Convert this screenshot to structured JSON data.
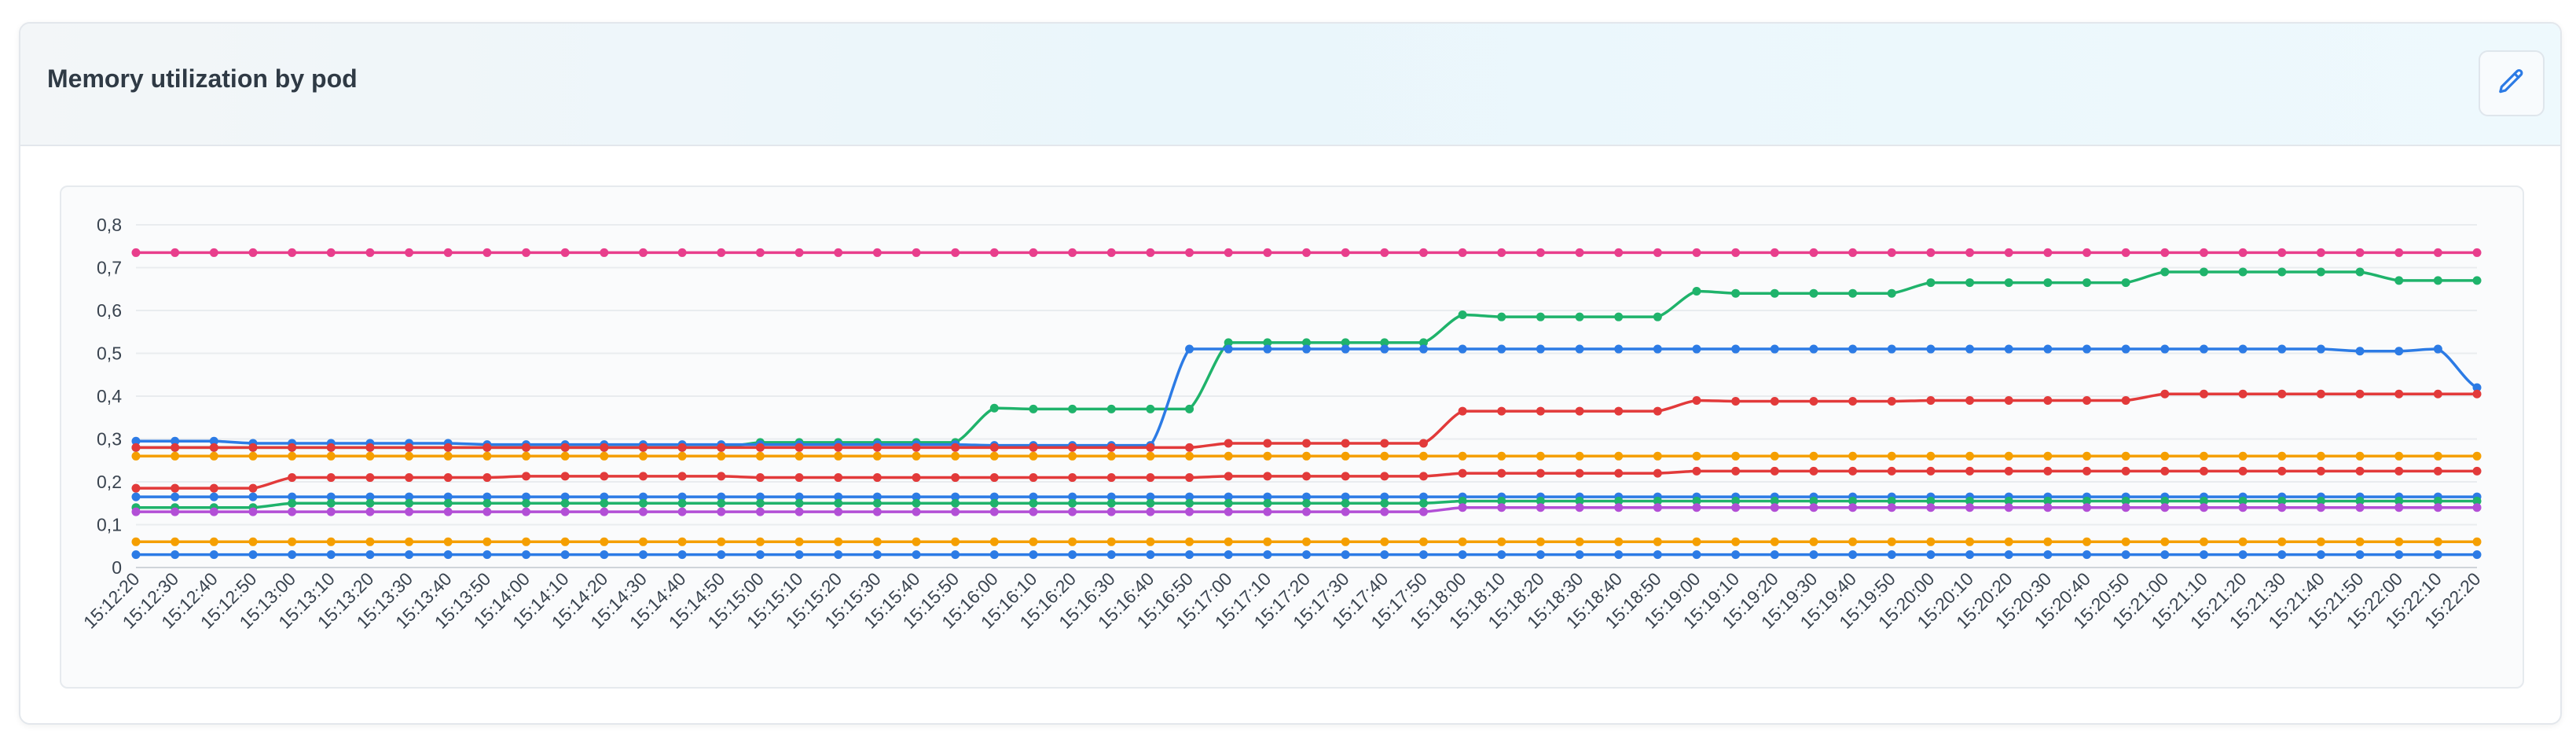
{
  "card": {
    "title": "Memory utilization by pod"
  },
  "icons": {
    "edit": "pencil-icon"
  },
  "chart_data": {
    "type": "line",
    "ylim": [
      0,
      0.8
    ],
    "y_ticks": [
      "0",
      "0,1",
      "0,2",
      "0,3",
      "0,4",
      "0,5",
      "0,6",
      "0,7",
      "0,8"
    ],
    "grid": true,
    "legend": "none",
    "x": [
      "15:12:20",
      "15:12:30",
      "15:12:40",
      "15:12:50",
      "15:13:00",
      "15:13:10",
      "15:13:20",
      "15:13:30",
      "15:13:40",
      "15:13:50",
      "15:14:00",
      "15:14:10",
      "15:14:20",
      "15:14:30",
      "15:14:40",
      "15:14:50",
      "15:15:00",
      "15:15:10",
      "15:15:20",
      "15:15:30",
      "15:15:40",
      "15:15:50",
      "15:16:00",
      "15:16:10",
      "15:16:20",
      "15:16:30",
      "15:16:40",
      "15:16:50",
      "15:17:00",
      "15:17:10",
      "15:17:20",
      "15:17:30",
      "15:17:40",
      "15:17:50",
      "15:18:00",
      "15:18:10",
      "15:18:20",
      "15:18:30",
      "15:18:40",
      "15:18:50",
      "15:19:00",
      "15:19:10",
      "15:19:20",
      "15:19:30",
      "15:19:40",
      "15:19:50",
      "15:20:00",
      "15:20:10",
      "15:20:20",
      "15:20:30",
      "15:20:40",
      "15:20:50",
      "15:21:00",
      "15:21:10",
      "15:21:20",
      "15:21:30",
      "15:21:40",
      "15:21:50",
      "15:22:00",
      "15:22:10",
      "15:22:20"
    ],
    "series": [
      {
        "color": "#e83e8c",
        "values": [
          0.735,
          0.735,
          0.735,
          0.735,
          0.735,
          0.735,
          0.735,
          0.735,
          0.735,
          0.735,
          0.735,
          0.735,
          0.735,
          0.735,
          0.735,
          0.735,
          0.735,
          0.735,
          0.735,
          0.735,
          0.735,
          0.735,
          0.735,
          0.735,
          0.735,
          0.735,
          0.735,
          0.735,
          0.735,
          0.735,
          0.735,
          0.735,
          0.735,
          0.735,
          0.735,
          0.735,
          0.735,
          0.735,
          0.735,
          0.735,
          0.735,
          0.735,
          0.735,
          0.735,
          0.735,
          0.735,
          0.735,
          0.735,
          0.735,
          0.735,
          0.735,
          0.735,
          0.735,
          0.735,
          0.735,
          0.735,
          0.735,
          0.735,
          0.735,
          0.735,
          0.735
        ]
      },
      {
        "color": "#1fb36b",
        "values": [
          0.28,
          0.28,
          0.28,
          0.28,
          0.28,
          0.28,
          0.28,
          0.28,
          0.28,
          0.28,
          0.28,
          0.28,
          0.28,
          0.28,
          0.28,
          0.28,
          0.292,
          0.292,
          0.292,
          0.292,
          0.292,
          0.292,
          0.372,
          0.37,
          0.37,
          0.37,
          0.37,
          0.37,
          0.525,
          0.525,
          0.525,
          0.525,
          0.525,
          0.525,
          0.59,
          0.585,
          0.585,
          0.585,
          0.585,
          0.585,
          0.645,
          0.64,
          0.64,
          0.64,
          0.64,
          0.64,
          0.665,
          0.665,
          0.665,
          0.665,
          0.665,
          0.665,
          0.69,
          0.69,
          0.69,
          0.69,
          0.69,
          0.69,
          0.67,
          0.67,
          0.67
        ]
      },
      {
        "color": "#2c7be5",
        "values": [
          0.295,
          0.295,
          0.295,
          0.29,
          0.29,
          0.29,
          0.29,
          0.29,
          0.29,
          0.287,
          0.287,
          0.287,
          0.287,
          0.287,
          0.287,
          0.287,
          0.287,
          0.287,
          0.287,
          0.287,
          0.287,
          0.287,
          0.285,
          0.285,
          0.285,
          0.285,
          0.285,
          0.51,
          0.51,
          0.51,
          0.51,
          0.51,
          0.51,
          0.51,
          0.51,
          0.51,
          0.51,
          0.51,
          0.51,
          0.51,
          0.51,
          0.51,
          0.51,
          0.51,
          0.51,
          0.51,
          0.51,
          0.51,
          0.51,
          0.51,
          0.51,
          0.51,
          0.51,
          0.51,
          0.51,
          0.51,
          0.51,
          0.505,
          0.505,
          0.51,
          0.42
        ]
      },
      {
        "color": "#e23a3a",
        "values": [
          0.28,
          0.28,
          0.28,
          0.28,
          0.28,
          0.28,
          0.28,
          0.28,
          0.28,
          0.28,
          0.28,
          0.28,
          0.28,
          0.28,
          0.28,
          0.28,
          0.28,
          0.28,
          0.28,
          0.28,
          0.28,
          0.28,
          0.28,
          0.28,
          0.28,
          0.28,
          0.28,
          0.28,
          0.29,
          0.29,
          0.29,
          0.29,
          0.29,
          0.29,
          0.365,
          0.365,
          0.365,
          0.365,
          0.365,
          0.365,
          0.39,
          0.388,
          0.388,
          0.388,
          0.388,
          0.388,
          0.39,
          0.39,
          0.39,
          0.39,
          0.39,
          0.39,
          0.405,
          0.405,
          0.405,
          0.405,
          0.405,
          0.405,
          0.405,
          0.405,
          0.405
        ]
      },
      {
        "color": "#e23a3a",
        "values": [
          0.185,
          0.185,
          0.185,
          0.185,
          0.21,
          0.21,
          0.21,
          0.21,
          0.21,
          0.21,
          0.213,
          0.213,
          0.213,
          0.213,
          0.213,
          0.213,
          0.21,
          0.21,
          0.21,
          0.21,
          0.21,
          0.21,
          0.21,
          0.21,
          0.21,
          0.21,
          0.21,
          0.21,
          0.213,
          0.213,
          0.213,
          0.213,
          0.213,
          0.213,
          0.22,
          0.22,
          0.22,
          0.22,
          0.22,
          0.22,
          0.225,
          0.225,
          0.225,
          0.225,
          0.225,
          0.225,
          0.225,
          0.225,
          0.225,
          0.225,
          0.225,
          0.225,
          0.225,
          0.225,
          0.225,
          0.225,
          0.225,
          0.225,
          0.225,
          0.225,
          0.225
        ]
      },
      {
        "color": "#f59f00",
        "values": [
          0.26,
          0.26,
          0.26,
          0.26,
          0.26,
          0.26,
          0.26,
          0.26,
          0.26,
          0.26,
          0.26,
          0.26,
          0.26,
          0.26,
          0.26,
          0.26,
          0.26,
          0.26,
          0.26,
          0.26,
          0.26,
          0.26,
          0.26,
          0.26,
          0.26,
          0.26,
          0.26,
          0.26,
          0.26,
          0.26,
          0.26,
          0.26,
          0.26,
          0.26,
          0.26,
          0.26,
          0.26,
          0.26,
          0.26,
          0.26,
          0.26,
          0.26,
          0.26,
          0.26,
          0.26,
          0.26,
          0.26,
          0.26,
          0.26,
          0.26,
          0.26,
          0.26,
          0.26,
          0.26,
          0.26,
          0.26,
          0.26,
          0.26,
          0.26,
          0.26,
          0.26
        ]
      },
      {
        "color": "#f59f00",
        "values": [
          0.06,
          0.06,
          0.06,
          0.06,
          0.06,
          0.06,
          0.06,
          0.06,
          0.06,
          0.06,
          0.06,
          0.06,
          0.06,
          0.06,
          0.06,
          0.06,
          0.06,
          0.06,
          0.06,
          0.06,
          0.06,
          0.06,
          0.06,
          0.06,
          0.06,
          0.06,
          0.06,
          0.06,
          0.06,
          0.06,
          0.06,
          0.06,
          0.06,
          0.06,
          0.06,
          0.06,
          0.06,
          0.06,
          0.06,
          0.06,
          0.06,
          0.06,
          0.06,
          0.06,
          0.06,
          0.06,
          0.06,
          0.06,
          0.06,
          0.06,
          0.06,
          0.06,
          0.06,
          0.06,
          0.06,
          0.06,
          0.06,
          0.06,
          0.06,
          0.06,
          0.06
        ]
      },
      {
        "color": "#2c7be5",
        "values": [
          0.165,
          0.165,
          0.165,
          0.165,
          0.165,
          0.165,
          0.165,
          0.165,
          0.165,
          0.165,
          0.165,
          0.165,
          0.165,
          0.165,
          0.165,
          0.165,
          0.165,
          0.165,
          0.165,
          0.165,
          0.165,
          0.165,
          0.165,
          0.165,
          0.165,
          0.165,
          0.165,
          0.165,
          0.165,
          0.165,
          0.165,
          0.165,
          0.165,
          0.165,
          0.165,
          0.165,
          0.165,
          0.165,
          0.165,
          0.165,
          0.165,
          0.165,
          0.165,
          0.165,
          0.165,
          0.165,
          0.165,
          0.165,
          0.165,
          0.165,
          0.165,
          0.165,
          0.165,
          0.165,
          0.165,
          0.165,
          0.165,
          0.165,
          0.165,
          0.165,
          0.165
        ]
      },
      {
        "color": "#1fb36b",
        "values": [
          0.14,
          0.14,
          0.14,
          0.14,
          0.15,
          0.15,
          0.15,
          0.15,
          0.15,
          0.15,
          0.15,
          0.15,
          0.15,
          0.15,
          0.15,
          0.15,
          0.15,
          0.15,
          0.15,
          0.15,
          0.15,
          0.15,
          0.15,
          0.15,
          0.15,
          0.15,
          0.15,
          0.15,
          0.15,
          0.15,
          0.15,
          0.15,
          0.15,
          0.15,
          0.155,
          0.155,
          0.155,
          0.155,
          0.155,
          0.155,
          0.155,
          0.155,
          0.155,
          0.155,
          0.155,
          0.155,
          0.155,
          0.155,
          0.155,
          0.155,
          0.155,
          0.155,
          0.155,
          0.155,
          0.155,
          0.155,
          0.155,
          0.155,
          0.155,
          0.155,
          0.155
        ]
      },
      {
        "color": "#b24fd6",
        "values": [
          0.13,
          0.13,
          0.13,
          0.13,
          0.13,
          0.13,
          0.13,
          0.13,
          0.13,
          0.13,
          0.13,
          0.13,
          0.13,
          0.13,
          0.13,
          0.13,
          0.13,
          0.13,
          0.13,
          0.13,
          0.13,
          0.13,
          0.13,
          0.13,
          0.13,
          0.13,
          0.13,
          0.13,
          0.13,
          0.13,
          0.13,
          0.13,
          0.13,
          0.13,
          0.14,
          0.14,
          0.14,
          0.14,
          0.14,
          0.14,
          0.14,
          0.14,
          0.14,
          0.14,
          0.14,
          0.14,
          0.14,
          0.14,
          0.14,
          0.14,
          0.14,
          0.14,
          0.14,
          0.14,
          0.14,
          0.14,
          0.14,
          0.14,
          0.14,
          0.14,
          0.14
        ]
      },
      {
        "color": "#2c7be5",
        "values": [
          0.03,
          0.03,
          0.03,
          0.03,
          0.03,
          0.03,
          0.03,
          0.03,
          0.03,
          0.03,
          0.03,
          0.03,
          0.03,
          0.03,
          0.03,
          0.03,
          0.03,
          0.03,
          0.03,
          0.03,
          0.03,
          0.03,
          0.03,
          0.03,
          0.03,
          0.03,
          0.03,
          0.03,
          0.03,
          0.03,
          0.03,
          0.03,
          0.03,
          0.03,
          0.03,
          0.03,
          0.03,
          0.03,
          0.03,
          0.03,
          0.03,
          0.03,
          0.03,
          0.03,
          0.03,
          0.03,
          0.03,
          0.03,
          0.03,
          0.03,
          0.03,
          0.03,
          0.03,
          0.03,
          0.03,
          0.03,
          0.03,
          0.03,
          0.03,
          0.03,
          0.03
        ]
      }
    ]
  }
}
